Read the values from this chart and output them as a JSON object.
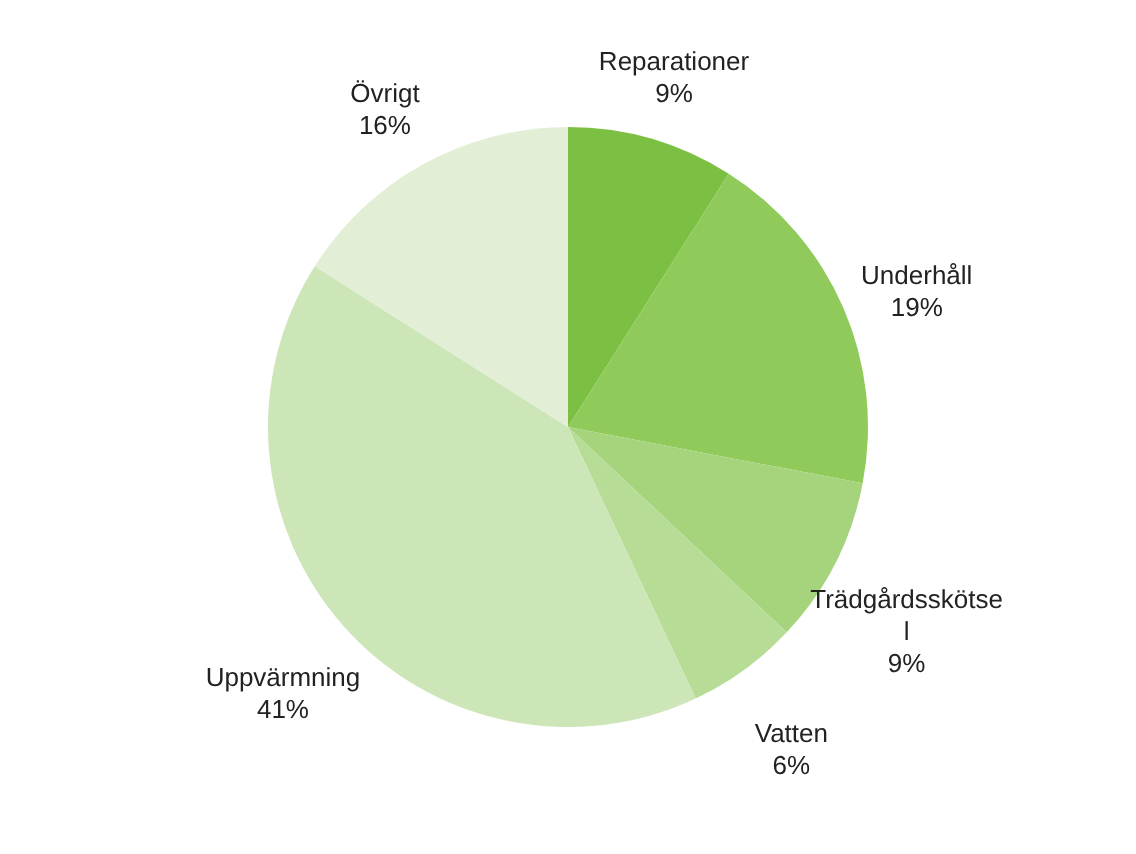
{
  "chart_data": {
    "type": "pie",
    "categories": [
      "Reparationer",
      "Underhåll",
      "Trädgårdsskötse\nl",
      "Vatten",
      "Uppvärmning",
      "Övrigt"
    ],
    "values": [
      9,
      19,
      9,
      6,
      41,
      16
    ],
    "value_labels": [
      "9%",
      "19%",
      "9%",
      "6%",
      "41%",
      "16%"
    ],
    "colors": [
      "#7cc043",
      "#8fca5a",
      "#a5d47c",
      "#b6dc95",
      "#cde6b8",
      "#e2efd6"
    ],
    "legend": false
  }
}
